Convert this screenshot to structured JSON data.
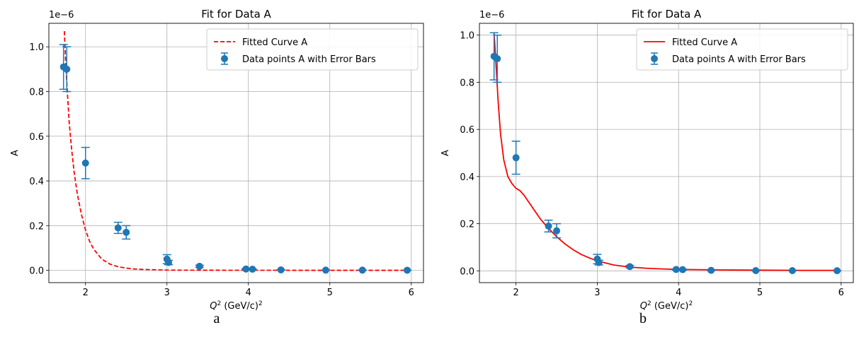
{
  "chart_data": [
    {
      "type": "scatter",
      "panel_label": "a",
      "title": "Fit for Data A",
      "xlabel_var": "Q",
      "xlabel_sup": "2",
      "xlabel_unit": " (GeV/c)",
      "xlabel_unit_sup": "2",
      "ylabel": "A",
      "y_offset_label": "1e−6",
      "xlim": [
        1.55,
        6.15
      ],
      "ylim": [
        -0.055,
        1.105
      ],
      "xticks": [
        2,
        3,
        4,
        5,
        6
      ],
      "yticks": [
        0.0,
        0.2,
        0.4,
        0.6,
        0.8,
        1.0
      ],
      "grid": true,
      "legend_position": "upper-right",
      "series": [
        {
          "name": "Fitted Curve A",
          "kind": "line",
          "style": "dashed",
          "color": "#ff0000",
          "x": [
            1.74,
            1.76,
            1.78,
            1.8,
            1.83,
            1.86,
            1.9,
            1.95,
            2.0,
            2.05,
            2.1,
            2.2,
            2.3,
            2.4,
            2.5,
            2.6,
            2.7,
            2.8,
            2.9,
            3.0,
            3.2,
            3.5,
            4.0,
            4.5,
            5.0,
            5.5,
            5.95
          ],
          "y": [
            1.07,
            0.9,
            0.78,
            0.66,
            0.54,
            0.44,
            0.34,
            0.25,
            0.18,
            0.13,
            0.095,
            0.05,
            0.028,
            0.016,
            0.01,
            0.006,
            0.004,
            0.003,
            0.002,
            0.001,
            0.0008,
            0.0005,
            0.0003,
            0.0002,
            0.0001,
            0.0001,
            0.0001
          ]
        },
        {
          "name": "Data points A with Error Bars",
          "kind": "errorbar",
          "color": "#1f77b4",
          "points": [
            {
              "x": 1.73,
              "y": 0.91,
              "err": 0.1
            },
            {
              "x": 1.77,
              "y": 0.9,
              "err": 0.1
            },
            {
              "x": 2.0,
              "y": 0.48,
              "err": 0.07
            },
            {
              "x": 2.4,
              "y": 0.19,
              "err": 0.025
            },
            {
              "x": 2.5,
              "y": 0.17,
              "err": 0.03
            },
            {
              "x": 3.0,
              "y": 0.05,
              "err": 0.02
            },
            {
              "x": 3.02,
              "y": 0.035,
              "err": 0.01
            },
            {
              "x": 3.4,
              "y": 0.018,
              "err": 0.005
            },
            {
              "x": 3.97,
              "y": 0.006,
              "err": 0.002
            },
            {
              "x": 4.05,
              "y": 0.005,
              "err": 0.002
            },
            {
              "x": 4.4,
              "y": 0.002,
              "err": 0.001
            },
            {
              "x": 4.95,
              "y": 0.001,
              "err": 0.001
            },
            {
              "x": 5.4,
              "y": 0.001,
              "err": 0.001
            },
            {
              "x": 5.95,
              "y": 0.0005,
              "err": 0.0005
            }
          ]
        }
      ]
    },
    {
      "type": "scatter",
      "panel_label": "b",
      "title": "Fit for Data A",
      "xlabel_var": "Q",
      "xlabel_sup": "2",
      "xlabel_unit": " (GeV/c)",
      "xlabel_unit_sup": "2",
      "ylabel": "A",
      "y_offset_label": "1e−6",
      "xlim": [
        1.55,
        6.15
      ],
      "ylim": [
        -0.05,
        1.05
      ],
      "xticks": [
        2,
        3,
        4,
        5,
        6
      ],
      "yticks": [
        0.0,
        0.2,
        0.4,
        0.6,
        0.8,
        1.0
      ],
      "grid": true,
      "legend_position": "upper-right",
      "series": [
        {
          "name": "Fitted Curve A",
          "kind": "line",
          "style": "solid",
          "color": "#ff0000",
          "x": [
            1.73,
            1.75,
            1.78,
            1.81,
            1.85,
            1.9,
            1.95,
            2.0,
            2.05,
            2.1,
            2.2,
            2.3,
            2.4,
            2.5,
            2.6,
            2.7,
            2.8,
            2.9,
            3.0,
            3.2,
            3.4,
            3.6,
            3.8,
            4.0,
            4.5,
            5.0,
            5.5,
            5.95
          ],
          "y": [
            1.01,
            0.9,
            0.72,
            0.58,
            0.47,
            0.4,
            0.37,
            0.35,
            0.34,
            0.32,
            0.27,
            0.22,
            0.18,
            0.145,
            0.115,
            0.09,
            0.07,
            0.055,
            0.042,
            0.025,
            0.016,
            0.011,
            0.008,
            0.006,
            0.004,
            0.003,
            0.002,
            0.002
          ]
        },
        {
          "name": "Data points A with Error Bars",
          "kind": "errorbar",
          "color": "#1f77b4",
          "points": [
            {
              "x": 1.73,
              "y": 0.91,
              "err": 0.1
            },
            {
              "x": 1.77,
              "y": 0.9,
              "err": 0.1
            },
            {
              "x": 2.0,
              "y": 0.48,
              "err": 0.07
            },
            {
              "x": 2.4,
              "y": 0.19,
              "err": 0.025
            },
            {
              "x": 2.5,
              "y": 0.17,
              "err": 0.03
            },
            {
              "x": 3.0,
              "y": 0.05,
              "err": 0.02
            },
            {
              "x": 3.02,
              "y": 0.035,
              "err": 0.01
            },
            {
              "x": 3.4,
              "y": 0.018,
              "err": 0.005
            },
            {
              "x": 3.97,
              "y": 0.006,
              "err": 0.002
            },
            {
              "x": 4.05,
              "y": 0.005,
              "err": 0.002
            },
            {
              "x": 4.4,
              "y": 0.002,
              "err": 0.001
            },
            {
              "x": 4.95,
              "y": 0.001,
              "err": 0.001
            },
            {
              "x": 5.4,
              "y": 0.001,
              "err": 0.001
            },
            {
              "x": 5.95,
              "y": 0.0005,
              "err": 0.0005
            }
          ]
        }
      ]
    }
  ]
}
